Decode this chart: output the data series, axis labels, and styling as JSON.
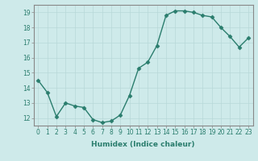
{
  "x": [
    0,
    1,
    2,
    3,
    4,
    5,
    6,
    7,
    8,
    9,
    10,
    11,
    12,
    13,
    14,
    15,
    16,
    17,
    18,
    19,
    20,
    21,
    22,
    23
  ],
  "y": [
    14.5,
    13.7,
    12.1,
    13.0,
    12.8,
    12.7,
    11.9,
    11.7,
    11.8,
    12.2,
    13.5,
    15.3,
    15.7,
    16.8,
    18.8,
    19.1,
    19.1,
    19.0,
    18.8,
    18.7,
    18.0,
    17.4,
    16.7,
    17.3
  ],
  "line_color": "#2a7d6d",
  "marker": "D",
  "marker_size": 2.5,
  "bg_color": "#ceeaea",
  "grid_color": "#b8d8d8",
  "xlabel": "Humidex (Indice chaleur)",
  "xlim": [
    -0.5,
    23.5
  ],
  "ylim": [
    11.5,
    19.5
  ],
  "yticks": [
    12,
    13,
    14,
    15,
    16,
    17,
    18,
    19
  ],
  "xticks": [
    0,
    1,
    2,
    3,
    4,
    5,
    6,
    7,
    8,
    9,
    10,
    11,
    12,
    13,
    14,
    15,
    16,
    17,
    18,
    19,
    20,
    21,
    22,
    23
  ],
  "tick_fontsize": 5.5,
  "label_fontsize": 6.5,
  "line_width": 1.0,
  "spine_color": "#888888"
}
